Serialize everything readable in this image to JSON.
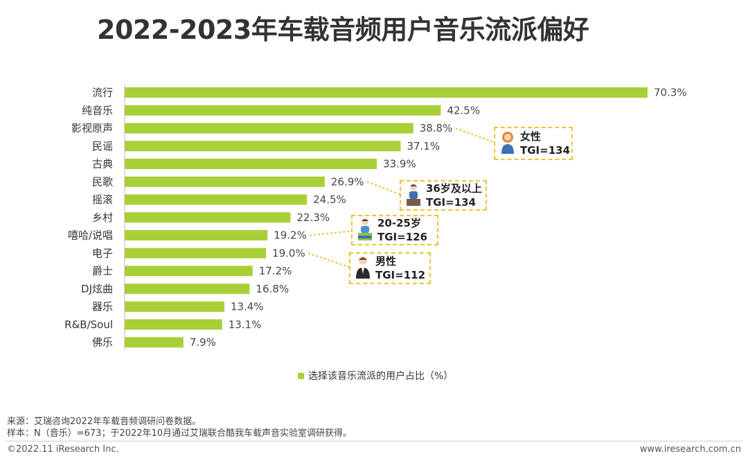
{
  "title": "2022-2023年车载音频用户音乐流派偏好",
  "chart_data": {
    "type": "bar",
    "orientation": "horizontal",
    "categories": [
      "流行",
      "纯音乐",
      "影视原声",
      "民谣",
      "古典",
      "民歌",
      "摇滚",
      "乡村",
      "嘻哈/说唱",
      "电子",
      "爵士",
      "DJ炫曲",
      "器乐",
      "R&B/Soul",
      "佛乐"
    ],
    "values": [
      70.3,
      42.5,
      38.8,
      37.1,
      33.9,
      26.9,
      24.5,
      22.3,
      19.2,
      19.0,
      17.2,
      16.8,
      13.4,
      13.1,
      7.9
    ],
    "value_labels": [
      "70.3%",
      "42.5%",
      "38.8%",
      "37.1%",
      "33.9%",
      "26.9%",
      "24.5%",
      "22.3%",
      "19.2%",
      "19.0%",
      "17.2%",
      "16.8%",
      "13.4%",
      "13.1%",
      "7.9%"
    ],
    "xlim": [
      0,
      72
    ],
    "legend": {
      "label": "选择该音乐流派的用户占比（%）",
      "position": "bottom"
    },
    "bar_color": "#a9cf38",
    "grid": false,
    "annotations": [
      {
        "category": "影视原声",
        "label": "女性",
        "tgi": "TGI=134",
        "icon": "woman-icon"
      },
      {
        "category": "民歌",
        "label": "36岁及以上",
        "tgi": "TGI=134",
        "icon": "older-person-icon"
      },
      {
        "category": "嘻哈/说唱",
        "label": "20-25岁",
        "tgi": "TGI=126",
        "icon": "young-person-icon"
      },
      {
        "category": "电子",
        "label": "男性",
        "tgi": "TGI=112",
        "icon": "man-icon"
      }
    ]
  },
  "notes": {
    "source": "来源：艾瑞咨询2022年车载音频调研问卷数据。",
    "sample": "样本：N（音乐）=673；于2022年10月通过艾瑞联合酷我车载声音实验室调研获得。"
  },
  "footer": {
    "copyright": "©2022.11 iResearch Inc.",
    "website": "www.iresearch.com.cn"
  },
  "colors": {
    "accent": "#a9cf38",
    "callout_border": "#f2c230",
    "connector": "#f2c230"
  }
}
